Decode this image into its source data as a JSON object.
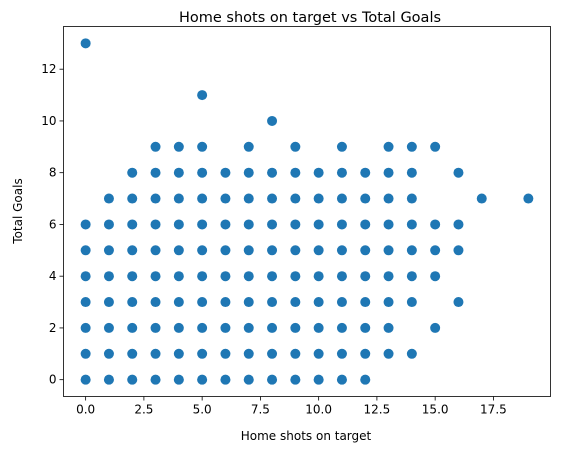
{
  "chart_data": {
    "type": "scatter",
    "title": "Home shots on target vs Total Goals",
    "xlabel": "Home shots on target",
    "ylabel": "Total Goals",
    "xlim": [
      -0.95,
      19.95
    ],
    "ylim": [
      -0.65,
      13.65
    ],
    "xticks": [
      0.0,
      2.5,
      5.0,
      7.5,
      10.0,
      12.5,
      15.0,
      17.5
    ],
    "xtick_labels": [
      "0.0",
      "2.5",
      "5.0",
      "7.5",
      "10.0",
      "12.5",
      "15.0",
      "17.5"
    ],
    "yticks": [
      0,
      2,
      4,
      6,
      8,
      10,
      12
    ],
    "ytick_labels": [
      "0",
      "2",
      "4",
      "6",
      "8",
      "10",
      "12"
    ],
    "grid": false,
    "marker_color": "#1f77b4",
    "points": [
      [
        0,
        0
      ],
      [
        0,
        1
      ],
      [
        0,
        2
      ],
      [
        0,
        3
      ],
      [
        0,
        4
      ],
      [
        0,
        5
      ],
      [
        0,
        6
      ],
      [
        0,
        13
      ],
      [
        1,
        0
      ],
      [
        1,
        1
      ],
      [
        1,
        2
      ],
      [
        1,
        3
      ],
      [
        1,
        4
      ],
      [
        1,
        5
      ],
      [
        1,
        6
      ],
      [
        1,
        7
      ],
      [
        2,
        0
      ],
      [
        2,
        1
      ],
      [
        2,
        2
      ],
      [
        2,
        3
      ],
      [
        2,
        4
      ],
      [
        2,
        5
      ],
      [
        2,
        6
      ],
      [
        2,
        7
      ],
      [
        2,
        8
      ],
      [
        3,
        0
      ],
      [
        3,
        1
      ],
      [
        3,
        2
      ],
      [
        3,
        3
      ],
      [
        3,
        4
      ],
      [
        3,
        5
      ],
      [
        3,
        6
      ],
      [
        3,
        7
      ],
      [
        3,
        8
      ],
      [
        3,
        9
      ],
      [
        4,
        0
      ],
      [
        4,
        1
      ],
      [
        4,
        2
      ],
      [
        4,
        3
      ],
      [
        4,
        4
      ],
      [
        4,
        5
      ],
      [
        4,
        6
      ],
      [
        4,
        7
      ],
      [
        4,
        8
      ],
      [
        4,
        9
      ],
      [
        5,
        0
      ],
      [
        5,
        1
      ],
      [
        5,
        2
      ],
      [
        5,
        3
      ],
      [
        5,
        4
      ],
      [
        5,
        5
      ],
      [
        5,
        6
      ],
      [
        5,
        7
      ],
      [
        5,
        8
      ],
      [
        5,
        9
      ],
      [
        5,
        11
      ],
      [
        6,
        0
      ],
      [
        6,
        1
      ],
      [
        6,
        2
      ],
      [
        6,
        3
      ],
      [
        6,
        4
      ],
      [
        6,
        5
      ],
      [
        6,
        6
      ],
      [
        6,
        7
      ],
      [
        6,
        8
      ],
      [
        7,
        0
      ],
      [
        7,
        1
      ],
      [
        7,
        2
      ],
      [
        7,
        3
      ],
      [
        7,
        4
      ],
      [
        7,
        5
      ],
      [
        7,
        6
      ],
      [
        7,
        7
      ],
      [
        7,
        8
      ],
      [
        7,
        9
      ],
      [
        8,
        0
      ],
      [
        8,
        1
      ],
      [
        8,
        2
      ],
      [
        8,
        3
      ],
      [
        8,
        4
      ],
      [
        8,
        5
      ],
      [
        8,
        6
      ],
      [
        8,
        7
      ],
      [
        8,
        8
      ],
      [
        8,
        10
      ],
      [
        9,
        0
      ],
      [
        9,
        1
      ],
      [
        9,
        2
      ],
      [
        9,
        3
      ],
      [
        9,
        4
      ],
      [
        9,
        5
      ],
      [
        9,
        6
      ],
      [
        9,
        7
      ],
      [
        9,
        8
      ],
      [
        9,
        9
      ],
      [
        10,
        0
      ],
      [
        10,
        1
      ],
      [
        10,
        2
      ],
      [
        10,
        3
      ],
      [
        10,
        4
      ],
      [
        10,
        5
      ],
      [
        10,
        6
      ],
      [
        10,
        7
      ],
      [
        10,
        8
      ],
      [
        11,
        0
      ],
      [
        11,
        1
      ],
      [
        11,
        2
      ],
      [
        11,
        3
      ],
      [
        11,
        4
      ],
      [
        11,
        5
      ],
      [
        11,
        6
      ],
      [
        11,
        7
      ],
      [
        11,
        8
      ],
      [
        11,
        9
      ],
      [
        12,
        0
      ],
      [
        12,
        1
      ],
      [
        12,
        2
      ],
      [
        12,
        3
      ],
      [
        12,
        4
      ],
      [
        12,
        5
      ],
      [
        12,
        6
      ],
      [
        12,
        7
      ],
      [
        12,
        8
      ],
      [
        13,
        1
      ],
      [
        13,
        2
      ],
      [
        13,
        3
      ],
      [
        13,
        4
      ],
      [
        13,
        5
      ],
      [
        13,
        6
      ],
      [
        13,
        7
      ],
      [
        13,
        8
      ],
      [
        13,
        9
      ],
      [
        14,
        1
      ],
      [
        14,
        3
      ],
      [
        14,
        4
      ],
      [
        14,
        5
      ],
      [
        14,
        6
      ],
      [
        14,
        7
      ],
      [
        14,
        8
      ],
      [
        14,
        9
      ],
      [
        15,
        2
      ],
      [
        15,
        4
      ],
      [
        15,
        5
      ],
      [
        15,
        6
      ],
      [
        15,
        9
      ],
      [
        16,
        3
      ],
      [
        16,
        5
      ],
      [
        16,
        6
      ],
      [
        16,
        8
      ],
      [
        17,
        7
      ],
      [
        19,
        7
      ]
    ]
  }
}
